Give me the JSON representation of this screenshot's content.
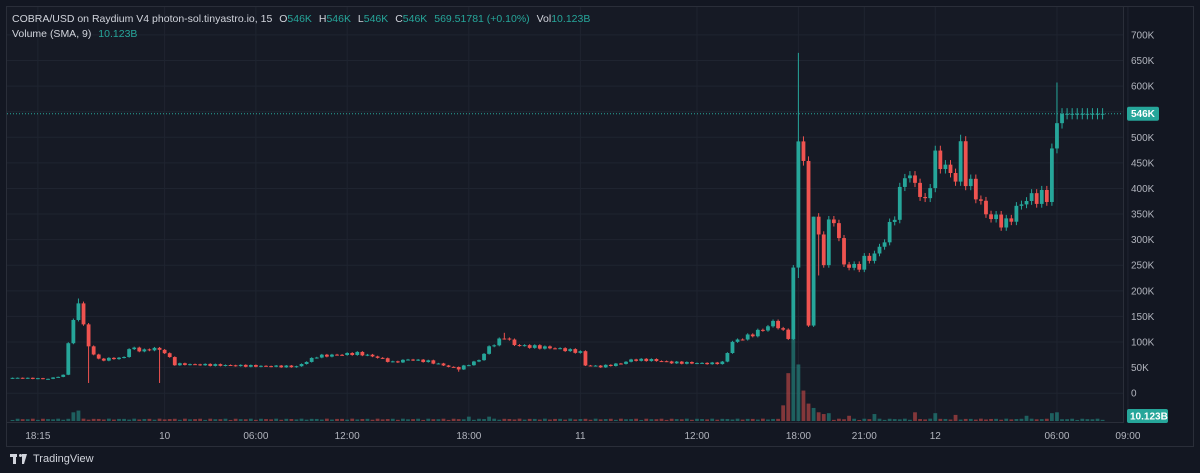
{
  "legend": {
    "symbol": "COBRA/USD on Raydium V4 photon-sol.tinyastro.io, 15",
    "o_label": "O",
    "o_value": "546K",
    "h_label": "H",
    "h_value": "546K",
    "l_label": "L",
    "l_value": "546K",
    "c_label": "C",
    "c_value": "546K",
    "change": "569.51781 (+0.10%)",
    "vol_label": "Vol",
    "vol_value": "10.123B",
    "volume_label": "Volume (SMA, 9)",
    "volume_value": "10.123B"
  },
  "footer": {
    "brand": "TradingView"
  },
  "colors": {
    "up": "#26a69a",
    "down": "#ef5350",
    "bg": "#131722",
    "grid": "#1f2430",
    "text": "#b2b5be",
    "last": "#26a69a"
  },
  "chart_data": {
    "type": "candlestick",
    "title": "COBRA/USD on Raydium V4 photon-sol.tinyastro.io, 15",
    "ylim": [
      -25000,
      735000
    ],
    "y_ticks": [
      "700K",
      "650K",
      "600K",
      "550K",
      "500K",
      "450K",
      "400K",
      "350K",
      "300K",
      "250K",
      "200K",
      "150K",
      "100K",
      "50K",
      "0"
    ],
    "y_tick_values": [
      700000,
      650000,
      600000,
      550000,
      500000,
      450000,
      400000,
      350000,
      300000,
      250000,
      200000,
      150000,
      100000,
      50000,
      0
    ],
    "x_ticks": [
      "18:15",
      "10",
      "06:00",
      "12:00",
      "18:00",
      "11",
      "12:00",
      "18:00",
      "21:00",
      "12",
      "06:00",
      "09:00"
    ],
    "x_tick_index": [
      5,
      30,
      48,
      66,
      90,
      112,
      135,
      155,
      168,
      182,
      206,
      220
    ],
    "n_bars": 216,
    "last_price": 546000,
    "last_price_label": "546K",
    "volume_badge": "10.123B",
    "series": [
      {
        "name": "COBRA/USD",
        "path": [
          [
            0,
            30000
          ],
          [
            7,
            28000
          ],
          [
            10,
            35000
          ],
          [
            11,
            100000
          ],
          [
            13,
            178000
          ],
          [
            15,
            90000
          ],
          [
            17,
            65000
          ],
          [
            22,
            70000
          ],
          [
            23,
            88000
          ],
          [
            26,
            83000
          ],
          [
            28,
            88000
          ],
          [
            30,
            80000
          ],
          [
            32,
            57000
          ],
          [
            40,
            55000
          ],
          [
            48,
            53000
          ],
          [
            56,
            52000
          ],
          [
            58,
            62000
          ],
          [
            60,
            72000
          ],
          [
            64,
            75000
          ],
          [
            68,
            78000
          ],
          [
            72,
            70000
          ],
          [
            75,
            60000
          ],
          [
            78,
            66000
          ],
          [
            82,
            62000
          ],
          [
            86,
            52000
          ],
          [
            88,
            48000
          ],
          [
            92,
            65000
          ],
          [
            94,
            90000
          ],
          [
            97,
            110000
          ],
          [
            99,
            95000
          ],
          [
            101,
            92000
          ],
          [
            107,
            88000
          ],
          [
            112,
            80000
          ],
          [
            113,
            55000
          ],
          [
            116,
            52000
          ],
          [
            120,
            58000
          ],
          [
            122,
            65000
          ],
          [
            126,
            65000
          ],
          [
            130,
            60000
          ],
          [
            138,
            58000
          ],
          [
            140,
            60000
          ],
          [
            142,
            100000
          ],
          [
            146,
            115000
          ],
          [
            149,
            130000
          ],
          [
            150,
            140000
          ],
          [
            152,
            120000
          ],
          [
            153,
            110000
          ],
          [
            154,
            240000
          ],
          [
            155,
            500000
          ],
          [
            156,
            450000
          ],
          [
            157,
            130000
          ],
          [
            158,
            350000
          ],
          [
            159,
            300000
          ],
          [
            160,
            260000
          ],
          [
            161,
            330000
          ],
          [
            162,
            340000
          ],
          [
            163,
            300000
          ],
          [
            164,
            250000
          ],
          [
            165,
            250000
          ],
          [
            166,
            245000
          ],
          [
            167,
            250000
          ],
          [
            168,
            260000
          ],
          [
            170,
            270000
          ],
          [
            172,
            300000
          ],
          [
            174,
            350000
          ],
          [
            176,
            430000
          ],
          [
            178,
            410000
          ],
          [
            180,
            370000
          ],
          [
            182,
            460000
          ],
          [
            184,
            440000
          ],
          [
            186,
            420000
          ],
          [
            187,
            480000
          ],
          [
            188,
            420000
          ],
          [
            190,
            390000
          ],
          [
            192,
            350000
          ],
          [
            194,
            340000
          ],
          [
            196,
            330000
          ],
          [
            198,
            360000
          ],
          [
            200,
            380000
          ],
          [
            204,
            385000
          ],
          [
            205,
            470000
          ],
          [
            206,
            530000
          ],
          [
            207,
            546000
          ]
        ],
        "wick_up": {
          "13": 185000,
          "97": 118000,
          "155": 665000,
          "158": 345000,
          "187": 505000,
          "206": 607000
        },
        "wick_down": {
          "15": 20000,
          "29": 20000,
          "88": 42000,
          "155": 225000,
          "159": 230000
        }
      }
    ],
    "volume": {
      "spikes": {
        "12": 10,
        "13": 12,
        "90": 5,
        "94": 5,
        "152": 18,
        "153": 55,
        "154": 95,
        "155": 65,
        "156": 35,
        "157": 20,
        "158": 15,
        "159": 10,
        "160": 8,
        "161": 9,
        "165": 6,
        "170": 8,
        "178": 10,
        "182": 9,
        "186": 7,
        "200": 6,
        "205": 9,
        "206": 10
      }
    }
  }
}
